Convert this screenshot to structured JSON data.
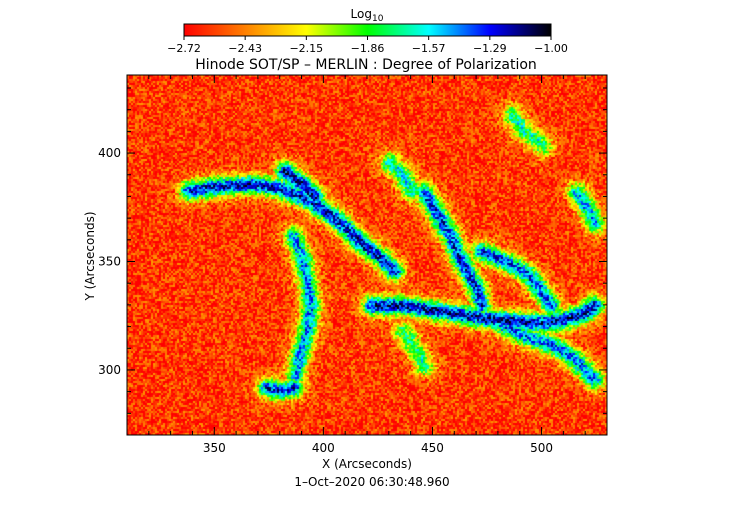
{
  "chart_data": {
    "type": "heatmap",
    "title": "Hinode SOT/SP – MERLIN : Degree of Polarization",
    "xlabel": "X (Arcseconds)",
    "ylabel": "Y (Arcseconds)",
    "timestamp": "1–Oct–2020 06:30:48.960",
    "xlim": [
      310,
      530
    ],
    "ylim": [
      270,
      436
    ],
    "xticks": [
      350,
      400,
      450,
      500
    ],
    "yticks": [
      300,
      350,
      400
    ],
    "xtick_labels": [
      "350",
      "400",
      "450",
      "500"
    ],
    "ytick_labels": [
      "300",
      "350",
      "400"
    ],
    "colorbar": {
      "label": "Log",
      "label_subscript": "10",
      "range": [
        -2.72,
        -1.0
      ],
      "tick_labels": [
        "−2.72",
        "−2.43",
        "−2.15",
        "−1.86",
        "−1.57",
        "−1.29",
        "−1.00"
      ],
      "colormap": [
        "#ff0000",
        "#ff8000",
        "#ffff00",
        "#00ff00",
        "#00ffff",
        "#0000ff",
        "#000000"
      ],
      "position": "top"
    },
    "background_value": -2.6,
    "structures": [
      {
        "name": "western plage",
        "path": [
          [
            338,
            383
          ],
          [
            352,
            385
          ],
          [
            368,
            386
          ],
          [
            380,
            384
          ],
          [
            390,
            380
          ],
          [
            400,
            374
          ],
          [
            410,
            366
          ],
          [
            418,
            358
          ],
          [
            426,
            352
          ],
          [
            432,
            346
          ]
        ],
        "level": -1.25
      },
      {
        "name": "western plage upper lobe",
        "path": [
          [
            382,
            392
          ],
          [
            390,
            386
          ],
          [
            396,
            380
          ]
        ],
        "level": -1.2
      },
      {
        "name": "central descending lane",
        "path": [
          [
            386,
            362
          ],
          [
            390,
            352
          ],
          [
            392,
            342
          ],
          [
            394,
            330
          ],
          [
            392,
            318
          ],
          [
            389,
            308
          ],
          [
            387,
            298
          ]
        ],
        "level": -1.45
      },
      {
        "name": "lower west knot",
        "path": [
          [
            374,
            292
          ],
          [
            380,
            291
          ],
          [
            386,
            292
          ]
        ],
        "level": -1.3
      },
      {
        "name": "eastern network lane",
        "path": [
          [
            422,
            330
          ],
          [
            436,
            330
          ],
          [
            450,
            328
          ],
          [
            462,
            326
          ],
          [
            474,
            324
          ],
          [
            486,
            323
          ],
          [
            498,
            322
          ],
          [
            508,
            323
          ],
          [
            518,
            326
          ],
          [
            524,
            330
          ]
        ],
        "level": -1.2
      },
      {
        "name": "eastern north branch",
        "path": [
          [
            446,
            382
          ],
          [
            452,
            372
          ],
          [
            458,
            362
          ],
          [
            462,
            352
          ],
          [
            466,
            345
          ],
          [
            470,
            338
          ],
          [
            472,
            330
          ]
        ],
        "level": -1.3
      },
      {
        "name": "eastern loop",
        "path": [
          [
            472,
            355
          ],
          [
            484,
            350
          ],
          [
            494,
            344
          ],
          [
            500,
            336
          ],
          [
            504,
            330
          ]
        ],
        "level": -1.35
      },
      {
        "name": "eastern south tail",
        "path": [
          [
            480,
            322
          ],
          [
            492,
            316
          ],
          [
            504,
            312
          ],
          [
            514,
            306
          ],
          [
            520,
            300
          ],
          [
            524,
            296
          ]
        ],
        "level": -1.4
      },
      {
        "name": "north central filament",
        "path": [
          [
            430,
            396
          ],
          [
            436,
            390
          ],
          [
            440,
            383
          ]
        ],
        "level": -1.6
      },
      {
        "name": "north east filament",
        "path": [
          [
            486,
            418
          ],
          [
            492,
            410
          ],
          [
            500,
            404
          ]
        ],
        "level": -1.7
      },
      {
        "name": "far east patch",
        "path": [
          [
            516,
            382
          ],
          [
            520,
            376
          ],
          [
            524,
            368
          ]
        ],
        "level": -1.5
      },
      {
        "name": "south central filament",
        "path": [
          [
            436,
            318
          ],
          [
            442,
            310
          ],
          [
            446,
            302
          ]
        ],
        "level": -1.75
      }
    ]
  }
}
